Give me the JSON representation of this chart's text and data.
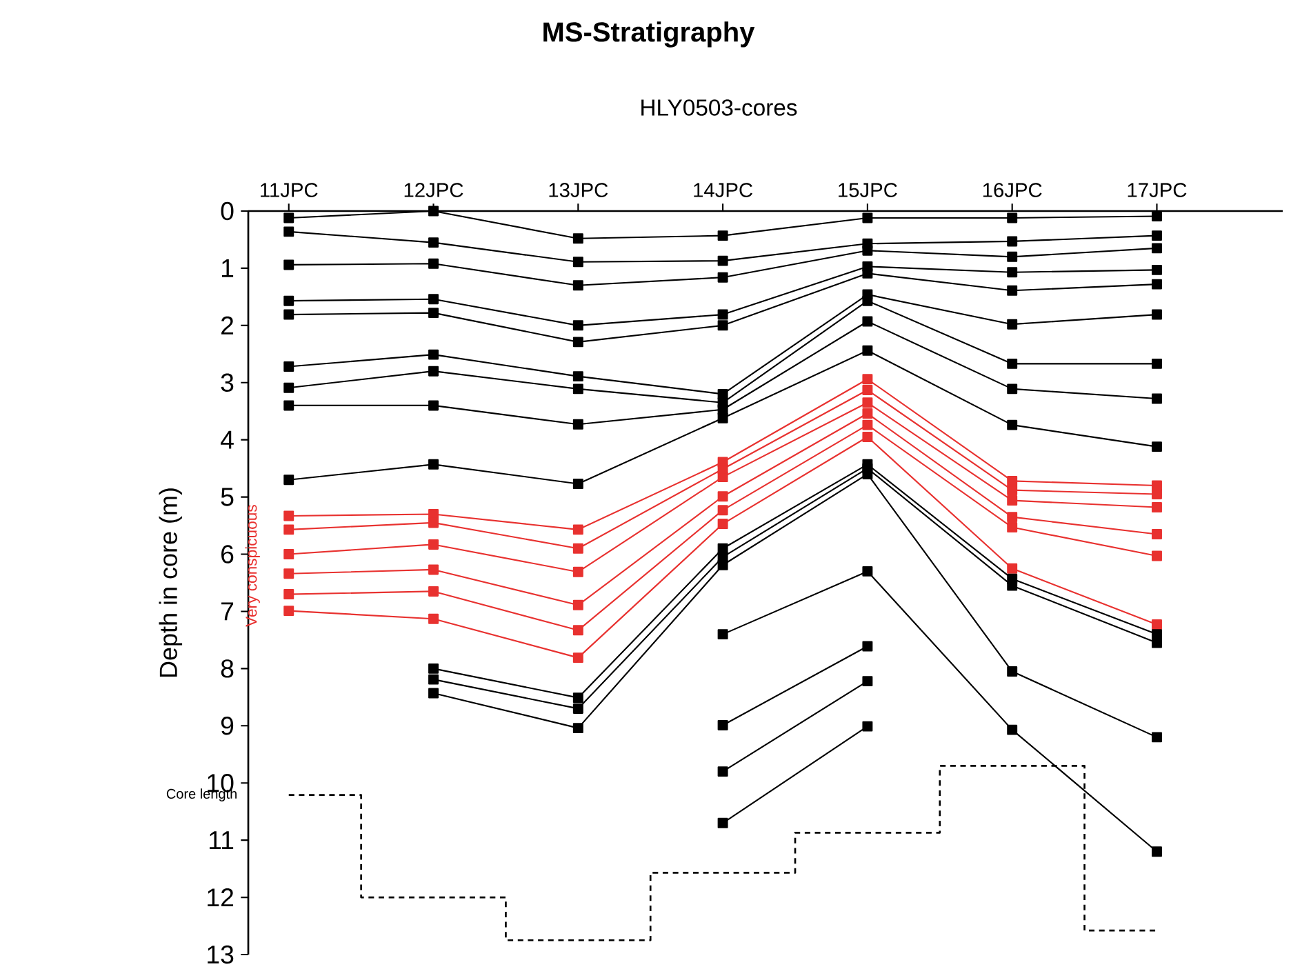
{
  "chart_data": {
    "type": "line",
    "title": "MS-Stratigraphy",
    "subtitle": "HLY0503-cores",
    "ylabel": "Depth in core (m)",
    "marker": "square",
    "categories": [
      "11JPC",
      "12JPC",
      "13JPC",
      "14JPC",
      "15JPC",
      "16JPC",
      "17JPC"
    ],
    "ylim": [
      13,
      0
    ],
    "yticks": [
      0,
      1,
      2,
      3,
      4,
      5,
      6,
      7,
      8,
      9,
      10,
      11,
      12,
      13
    ],
    "annotations": [
      "Very conspicuous"
    ],
    "series": [
      {
        "type": "step",
        "name": "Core length",
        "color": "#000000",
        "marker": "none",
        "line_style": "dashed",
        "values": [
          10.21,
          12.0,
          12.75,
          11.57,
          10.87,
          9.7,
          12.58
        ]
      },
      {
        "color": "#000000",
        "values": [
          0.12,
          0.0,
          0.48,
          0.43,
          0.12,
          0.12,
          0.09
        ]
      },
      {
        "color": "#000000",
        "values": [
          0.36,
          0.55,
          0.89,
          0.87,
          0.57,
          0.53,
          0.43
        ]
      },
      {
        "color": "#000000",
        "values": [
          0.94,
          0.92,
          1.3,
          1.16,
          0.69,
          0.8,
          0.65
        ]
      },
      {
        "color": "#000000",
        "values": [
          1.57,
          1.54,
          2.0,
          1.81,
          0.97,
          1.07,
          1.03
        ]
      },
      {
        "color": "#000000",
        "values": [
          1.81,
          1.78,
          2.29,
          2.0,
          1.09,
          1.39,
          1.28
        ]
      },
      {
        "color": "#000000",
        "values": [
          2.72,
          2.51,
          2.89,
          3.2,
          1.46,
          1.98,
          1.81
        ]
      },
      {
        "color": "#000000",
        "values": [
          3.09,
          2.8,
          3.11,
          3.35,
          1.57,
          2.67,
          2.67
        ]
      },
      {
        "color": "#000000",
        "values": [
          3.4,
          3.4,
          3.73,
          3.47,
          1.93,
          3.11,
          3.28
        ]
      },
      {
        "color": "#000000",
        "values": [
          4.7,
          4.43,
          4.77,
          3.62,
          2.44,
          3.74,
          4.12
        ]
      },
      {
        "color": "#e8312f",
        "values": [
          5.33,
          5.3,
          5.57,
          4.39,
          2.94,
          4.72,
          4.8
        ]
      },
      {
        "color": "#e8312f",
        "values": [
          5.57,
          5.45,
          5.9,
          4.51,
          3.13,
          4.88,
          4.95
        ]
      },
      {
        "color": "#e8312f",
        "values": [
          6.0,
          5.83,
          6.31,
          4.65,
          3.35,
          5.06,
          5.18
        ]
      },
      {
        "color": "#e8312f",
        "values": [
          6.34,
          6.27,
          6.89,
          4.99,
          3.54,
          5.35,
          5.65
        ]
      },
      {
        "color": "#e8312f",
        "values": [
          6.7,
          6.65,
          7.33,
          5.23,
          3.74,
          5.53,
          6.03
        ]
      },
      {
        "color": "#e8312f",
        "values": [
          6.99,
          7.13,
          7.81,
          5.47,
          3.95,
          6.25,
          7.23
        ]
      },
      {
        "color": "#000000",
        "values": [
          null,
          8.0,
          8.51,
          5.9,
          4.43,
          6.43,
          7.4
        ]
      },
      {
        "color": "#000000",
        "values": [
          null,
          8.19,
          8.7,
          6.05,
          4.5,
          6.55,
          7.55
        ]
      },
      {
        "color": "#000000",
        "values": [
          null,
          8.43,
          9.04,
          6.19,
          4.6,
          8.05,
          9.2
        ]
      },
      {
        "color": "#000000",
        "values": [
          null,
          null,
          null,
          7.4,
          6.3,
          9.07,
          11.2
        ]
      },
      {
        "color": "#000000",
        "values": [
          null,
          null,
          null,
          8.99,
          7.61,
          null,
          null
        ]
      },
      {
        "color": "#000000",
        "values": [
          null,
          null,
          null,
          9.8,
          8.22,
          null,
          null
        ]
      },
      {
        "color": "#000000",
        "values": [
          null,
          null,
          null,
          10.7,
          9.01,
          null,
          null
        ]
      }
    ]
  }
}
